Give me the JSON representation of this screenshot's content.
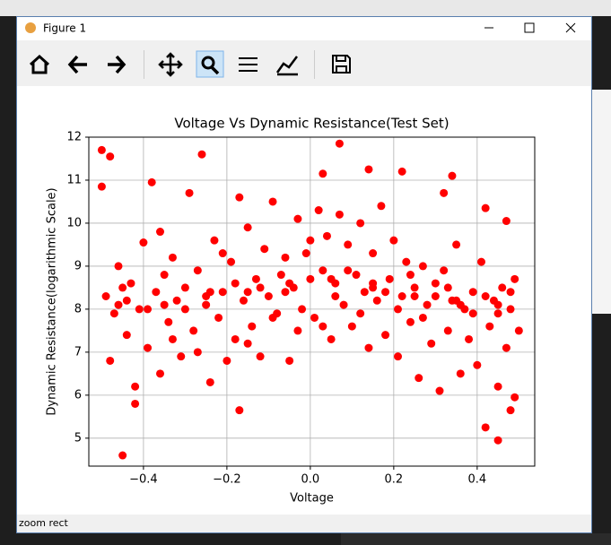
{
  "window": {
    "title": "Figure 1",
    "status": "zoom rect"
  },
  "chart_data": {
    "type": "scatter",
    "title": "Voltage Vs Dynamic Resistance(Test Set)",
    "xlabel": "Voltage",
    "ylabel": "Dynamic Resistance(logarithmic Scale)",
    "color": "#ff0000",
    "grid": true,
    "xlim": [
      -0.531,
      0.538
    ],
    "ylim": [
      4.35,
      12.0
    ],
    "xticks": [
      {
        "value": -0.4,
        "label": "−0.4"
      },
      {
        "value": -0.2,
        "label": "−0.2"
      },
      {
        "value": 0,
        "label": "0.0"
      },
      {
        "value": 0.2,
        "label": "0.2"
      },
      {
        "value": 0.4,
        "label": "0.4"
      }
    ],
    "yticks": [
      5,
      6,
      7,
      8,
      9,
      10,
      11,
      12
    ],
    "x": [
      -0.5,
      -0.48,
      -0.45,
      0.07,
      0.03,
      0.14,
      0.22,
      -0.26,
      0.45,
      -0.17,
      0.42,
      -0.42,
      -0.5,
      -0.38,
      0.34,
      0.47,
      0.48,
      0.49,
      0.32,
      0.42,
      -0.49,
      -0.47,
      -0.46,
      -0.44,
      -0.43,
      -0.41,
      -0.4,
      -0.39,
      -0.37,
      -0.36,
      -0.35,
      -0.34,
      -0.33,
      -0.32,
      -0.31,
      -0.3,
      -0.29,
      -0.28,
      -0.27,
      -0.25,
      -0.24,
      -0.23,
      -0.22,
      -0.21,
      -0.2,
      -0.19,
      -0.18,
      -0.17,
      -0.16,
      -0.15,
      -0.14,
      -0.13,
      -0.12,
      -0.11,
      -0.1,
      -0.09,
      -0.08,
      -0.07,
      -0.06,
      -0.05,
      -0.04,
      -0.03,
      -0.02,
      -0.01,
      0.0,
      0.01,
      0.02,
      0.03,
      0.04,
      0.05,
      0.06,
      0.07,
      0.08,
      0.09,
      0.1,
      0.11,
      0.12,
      0.13,
      0.14,
      0.15,
      0.16,
      0.17,
      0.18,
      0.19,
      0.2,
      0.21,
      0.22,
      0.23,
      0.24,
      0.25,
      0.26,
      0.27,
      0.28,
      0.29,
      0.3,
      0.31,
      0.32,
      0.33,
      0.34,
      0.35,
      0.36,
      0.37,
      0.38,
      0.39,
      0.4,
      0.41,
      0.43,
      0.44,
      0.45,
      0.46,
      0.47,
      0.48,
      0.49,
      0.5,
      -0.48,
      -0.46,
      -0.44,
      -0.42,
      -0.39,
      -0.36,
      -0.33,
      -0.3,
      -0.27,
      -0.24,
      -0.21,
      -0.18,
      -0.15,
      -0.12,
      -0.09,
      -0.06,
      -0.03,
      0.0,
      0.03,
      0.06,
      0.09,
      0.12,
      0.15,
      0.18,
      0.21,
      0.24,
      0.27,
      0.3,
      0.33,
      0.36,
      0.39,
      0.42,
      0.45,
      0.48,
      -0.45,
      -0.35,
      -0.25,
      -0.15,
      -0.05,
      0.05,
      0.15,
      0.25,
      0.35,
      0.45
    ],
    "values": [
      11.7,
      11.55,
      4.6,
      11.85,
      11.15,
      11.25,
      11.2,
      11.6,
      4.95,
      5.65,
      5.25,
      5.8,
      10.85,
      10.95,
      11.1,
      10.05,
      5.65,
      5.95,
      10.7,
      10.35,
      8.3,
      7.9,
      8.1,
      7.4,
      8.6,
      8.0,
      9.55,
      7.1,
      8.4,
      6.5,
      8.8,
      7.7,
      9.2,
      8.2,
      6.9,
      8.5,
      10.7,
      7.5,
      8.9,
      8.1,
      6.3,
      9.6,
      7.8,
      8.4,
      6.8,
      9.1,
      7.3,
      10.6,
      8.2,
      9.9,
      7.6,
      8.7,
      6.9,
      9.4,
      8.3,
      10.5,
      7.9,
      8.8,
      9.2,
      6.8,
      8.5,
      10.1,
      8.0,
      9.3,
      8.7,
      7.8,
      10.3,
      8.9,
      9.7,
      7.3,
      8.6,
      10.2,
      8.1,
      9.5,
      7.6,
      8.8,
      10.0,
      8.4,
      7.1,
      9.3,
      8.2,
      10.4,
      7.4,
      8.7,
      9.6,
      6.9,
      8.3,
      9.1,
      7.7,
      8.5,
      6.4,
      9.0,
      8.1,
      7.2,
      8.6,
      6.1,
      8.9,
      7.5,
      8.2,
      9.5,
      6.5,
      8.0,
      7.3,
      8.4,
      6.7,
      9.1,
      7.6,
      8.2,
      6.2,
      8.5,
      7.1,
      8.0,
      8.7,
      7.5,
      6.8,
      9.0,
      8.2,
      6.2,
      8.0,
      9.8,
      7.3,
      8.0,
      7.0,
      8.4,
      9.3,
      8.6,
      7.2,
      8.5,
      7.8,
      8.4,
      7.5,
      9.6,
      7.6,
      8.3,
      8.9,
      7.9,
      8.6,
      8.4,
      8.0,
      8.8,
      7.8,
      8.3,
      8.5,
      8.1,
      7.9,
      8.3,
      8.1,
      8.4,
      8.5,
      8.1,
      8.3,
      8.4,
      8.6,
      8.7,
      8.5,
      8.3,
      8.2,
      7.9
    ]
  }
}
